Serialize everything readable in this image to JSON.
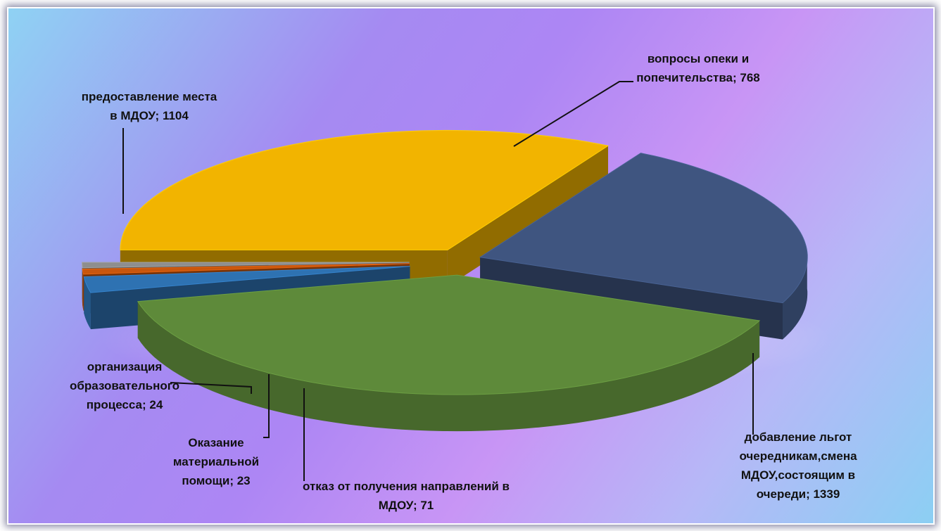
{
  "chart_data": {
    "type": "pie",
    "slices": [
      {
        "label": "предоставление места в МДОУ",
        "value": 1104,
        "color": "#f2b400",
        "label_text": "предоставление места в МДОУ; 1104"
      },
      {
        "label": "вопросы опеки и попечительства",
        "value": 768,
        "color": "#3f5580",
        "label_text": "вопросы опеки и попечительства; 768"
      },
      {
        "label": "добавление льгот очередникам,смена МДОУ,состоящим в очереди",
        "value": 1339,
        "color": "#5e8a3a",
        "label_text": "добавление льгот очередникам,смена МДОУ,состоящим в очереди; 1339"
      },
      {
        "label": "отказ от получения направлений в МДОУ",
        "value": 71,
        "color": "#2e72b2",
        "label_text": "отказ от получения направлений в МДОУ; 71"
      },
      {
        "label": "Оказание материальной помощи",
        "value": 23,
        "color": "#c8560d",
        "label_text": "Оказание материальной помощи; 23"
      },
      {
        "label": "организация образовательного процесса",
        "value": 24,
        "color": "#8e8e8e",
        "label_text": "организация образовательного процесса; 24"
      }
    ]
  },
  "labels": {
    "l0": [
      "предоставление места",
      "в МДОУ; 1104"
    ],
    "l1": [
      "вопросы опеки и",
      "попечительства; 768"
    ],
    "l2": [
      "добавление льгот",
      "очередникам,смена",
      "МДОУ,состоящим в",
      "очереди; 1339"
    ],
    "l3": [
      "отказ от получения направлений в",
      "МДОУ; 71"
    ],
    "l4": [
      "Оказание",
      "материальной",
      "помощи; 23"
    ],
    "l5": [
      "организация",
      "образовательного",
      "процесса; 24"
    ]
  }
}
